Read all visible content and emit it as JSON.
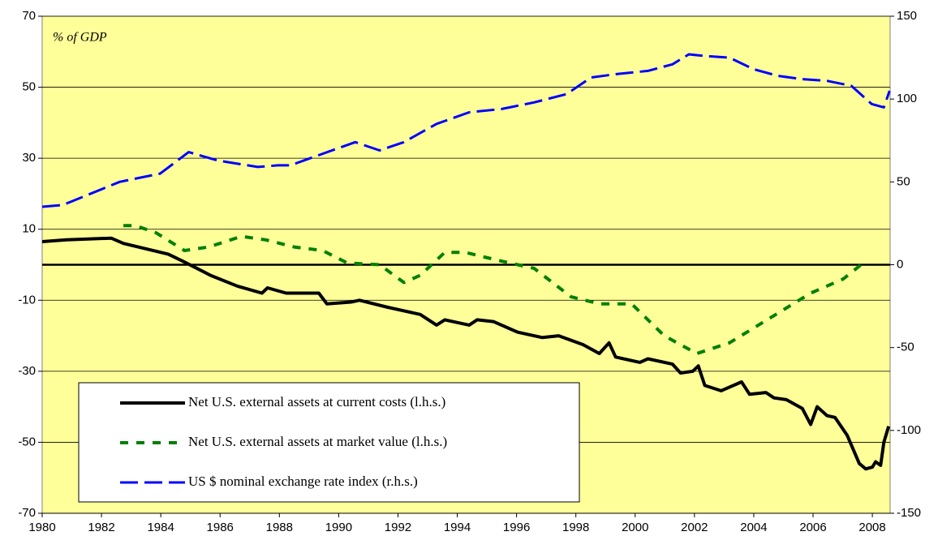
{
  "chart_data": {
    "type": "line",
    "annotation": "% of GDP",
    "xlim": [
      1980,
      2008.6
    ],
    "xticks": [
      1980,
      1982,
      1984,
      1986,
      1988,
      1990,
      1992,
      1994,
      1996,
      1998,
      2000,
      2002,
      2004,
      2006,
      2008
    ],
    "ylim": [
      -70,
      70
    ],
    "yticks": [
      70,
      50,
      30,
      10,
      -10,
      -30,
      -50,
      -70
    ],
    "y2lim": [
      -150,
      150
    ],
    "y2ticks": [
      150,
      100,
      50,
      0,
      -50,
      -100,
      -150
    ],
    "grid": true,
    "zero_line": true,
    "legend": "lower left",
    "series": [
      {
        "name": "Net U.S. external assets at current costs (l.h.s.)",
        "color": "#000000",
        "line_style": "solid",
        "x": [
          1980.0,
          1980.82,
          1982.33,
          1982.74,
          1984.25,
          1984.74,
          1985.68,
          1986.58,
          1987.41,
          1987.6,
          1988.23,
          1989.33,
          1989.6,
          1990.42,
          1990.7,
          1991.66,
          1992.75,
          1993.3,
          1993.58,
          1994.4,
          1994.67,
          1995.22,
          1996.04,
          1996.87,
          1997.42,
          1998.24,
          1998.79,
          1999.12,
          1999.34,
          2000.16,
          2000.43,
          2001.26,
          2001.53,
          2001.94,
          2002.13,
          2002.35,
          2002.9,
          2003.59,
          2003.86,
          2004.41,
          2004.68,
          2005.1,
          2005.64,
          2005.92,
          2006.14,
          2006.47,
          2006.74,
          2007.15,
          2007.56,
          2007.78,
          2008.0,
          2008.11,
          2008.28,
          2008.39,
          2008.55
        ],
        "values": [
          6.5,
          7,
          7.5,
          6,
          3,
          1,
          -3,
          -6,
          -8,
          -6.5,
          -8,
          -8,
          -11,
          -10.5,
          -10,
          -12,
          -14,
          -17,
          -15.5,
          -17,
          -15.5,
          -16,
          -19,
          -20.5,
          -20,
          -22.5,
          -25,
          -22,
          -26,
          -27.5,
          -26.5,
          -28,
          -30.5,
          -30,
          -28.5,
          -34,
          -35.5,
          -33,
          -36.5,
          -36,
          -37.5,
          -38,
          -40.5,
          -45,
          -40,
          -42.5,
          -43,
          -48,
          -56,
          -57.5,
          -57,
          -55.5,
          -56.5,
          -50,
          -45.5
        ]
      },
      {
        "name": "Net U.S. external assets at market value (l.h.s.)",
        "color": "#008000",
        "line_style": "dotted",
        "x": [
          1982.74,
          1983.15,
          1983.84,
          1984.8,
          1985.62,
          1986.72,
          1987.54,
          1988.5,
          1989.46,
          1990.29,
          1991.38,
          1992.2,
          1992.75,
          1993.58,
          1994.26,
          1995.5,
          1996.59,
          1997.83,
          1998.79,
          1999.88,
          2000.98,
          2002.08,
          2003.18,
          2004.55,
          2005.92,
          2007.02,
          2007.62
        ],
        "values": [
          11,
          11,
          9,
          4,
          5,
          8,
          7,
          5,
          4,
          0.5,
          0,
          -5,
          -3,
          3.5,
          3.5,
          1,
          -1,
          -9,
          -11,
          -11,
          -20,
          -25,
          -22,
          -15,
          -8,
          -4,
          0
        ]
      },
      {
        "name": "US $ nominal exchange rate index (r.h.s.)",
        "color": "#0000ff",
        "line_style": "dashed",
        "axis": "y2",
        "x": [
          1980.0,
          1980.69,
          1981.51,
          1982.61,
          1983.98,
          1984.94,
          1985.9,
          1987.27,
          1987.95,
          1988.37,
          1989.46,
          1990.56,
          1991.38,
          1992.2,
          1993.3,
          1994.4,
          1995.5,
          1996.59,
          1997.69,
          1998.51,
          1999.34,
          2000.43,
          2001.26,
          2001.81,
          2002.35,
          2003.18,
          2004.0,
          2004.82,
          2005.64,
          2006.47,
          2007.29,
          2007.98,
          2008.39,
          2008.58
        ],
        "values": [
          35,
          36,
          42,
          50,
          55,
          68,
          63,
          59,
          60,
          60,
          67,
          74,
          69,
          74,
          85,
          92,
          94,
          98,
          103,
          113,
          115,
          117,
          121,
          127,
          126,
          125,
          118,
          114,
          112,
          111,
          108,
          97,
          95,
          105
        ]
      }
    ]
  }
}
